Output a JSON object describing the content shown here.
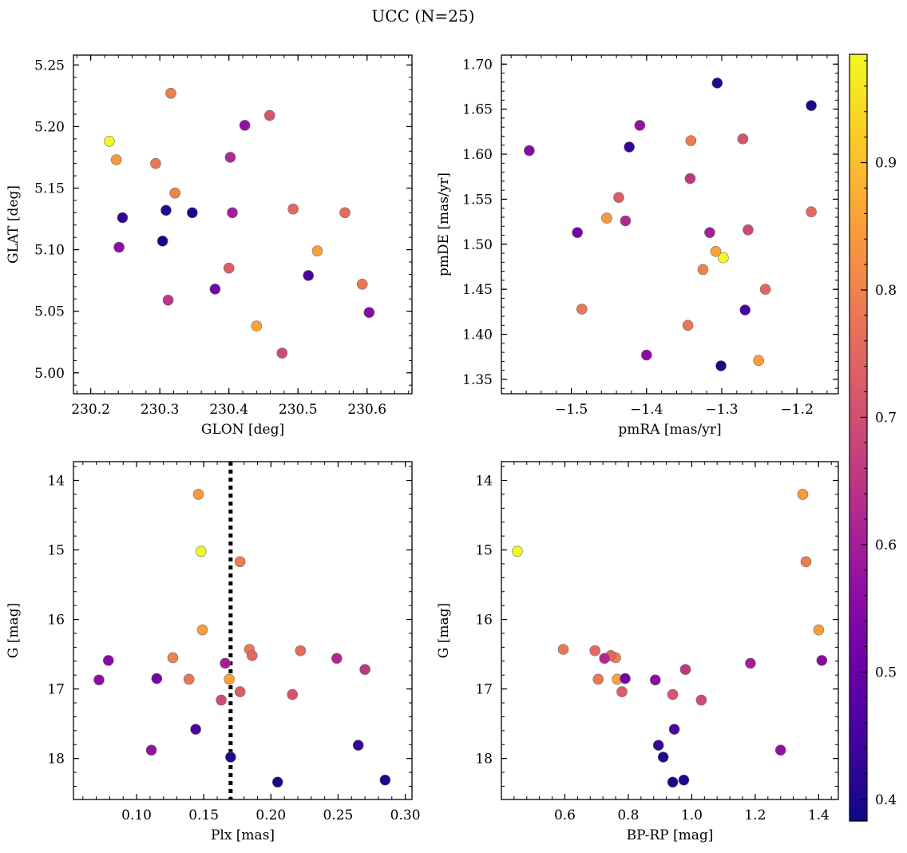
{
  "suptitle": "UCC (N=25)",
  "colormap": "plasma",
  "colorbar": {
    "min": 0.383,
    "max": 0.985,
    "ticks": [
      0.4,
      0.5,
      0.6,
      0.7,
      0.8,
      0.9
    ],
    "tick_labels": [
      "0.4",
      "0.5",
      "0.6",
      "0.7",
      "0.8",
      "0.9"
    ]
  },
  "stars": [
    {
      "glon": 230.227,
      "glat": 5.188,
      "pmra": -1.298,
      "pmde": 1.485,
      "plx": 0.148,
      "g": 15.02,
      "bprp": 0.45,
      "prob": 0.985
    },
    {
      "glon": 230.237,
      "glat": 5.173,
      "pmra": -1.453,
      "pmde": 1.529,
      "plx": 0.146,
      "g": 14.2,
      "bprp": 1.35,
      "prob": 0.84
    },
    {
      "glon": 230.528,
      "glat": 5.099,
      "pmra": -1.251,
      "pmde": 1.371,
      "plx": 0.149,
      "g": 16.15,
      "bprp": 1.4,
      "prob": 0.85
    },
    {
      "glon": 230.44,
      "glat": 5.038,
      "pmra": -1.308,
      "pmde": 1.492,
      "plx": 0.169,
      "g": 16.86,
      "bprp": 0.765,
      "prob": 0.86
    },
    {
      "glon": 230.322,
      "glat": 5.146,
      "pmra": -1.325,
      "pmde": 1.472,
      "plx": 0.127,
      "g": 16.55,
      "bprp": 0.76,
      "prob": 0.8
    },
    {
      "glon": 230.316,
      "glat": 5.227,
      "pmra": -1.341,
      "pmde": 1.615,
      "plx": 0.177,
      "g": 15.17,
      "bprp": 1.36,
      "prob": 0.79
    },
    {
      "glon": 230.294,
      "glat": 5.17,
      "pmra": -1.345,
      "pmde": 1.41,
      "plx": 0.184,
      "g": 16.43,
      "bprp": 0.595,
      "prob": 0.78
    },
    {
      "glon": 230.593,
      "glat": 5.072,
      "pmra": -1.486,
      "pmde": 1.428,
      "plx": 0.139,
      "g": 16.86,
      "bprp": 0.705,
      "prob": 0.78
    },
    {
      "glon": 230.568,
      "glat": 5.13,
      "pmra": -1.181,
      "pmde": 1.536,
      "plx": 0.222,
      "g": 16.45,
      "bprp": 0.695,
      "prob": 0.76
    },
    {
      "glon": 230.493,
      "glat": 5.133,
      "pmra": -1.242,
      "pmde": 1.45,
      "plx": 0.186,
      "g": 16.52,
      "bprp": 0.745,
      "prob": 0.75
    },
    {
      "glon": 230.4,
      "glat": 5.085,
      "pmra": -1.437,
      "pmde": 1.552,
      "plx": 0.177,
      "g": 17.04,
      "bprp": 0.78,
      "prob": 0.73
    },
    {
      "glon": 230.459,
      "glat": 5.209,
      "pmra": -1.272,
      "pmde": 1.617,
      "plx": 0.216,
      "g": 17.08,
      "bprp": 0.94,
      "prob": 0.71
    },
    {
      "glon": 230.477,
      "glat": 5.016,
      "pmra": -1.265,
      "pmde": 1.516,
      "plx": 0.163,
      "g": 17.16,
      "bprp": 1.03,
      "prob": 0.69
    },
    {
      "glon": 230.312,
      "glat": 5.059,
      "pmra": -1.342,
      "pmde": 1.573,
      "plx": 0.27,
      "g": 16.72,
      "bprp": 0.98,
      "prob": 0.65
    },
    {
      "glon": 230.402,
      "glat": 5.175,
      "pmra": -1.428,
      "pmde": 1.526,
      "plx": 0.249,
      "g": 16.56,
      "bprp": 0.725,
      "prob": 0.62
    },
    {
      "glon": 230.405,
      "glat": 5.13,
      "pmra": -1.316,
      "pmde": 1.513,
      "plx": 0.166,
      "g": 16.63,
      "bprp": 1.185,
      "prob": 0.6
    },
    {
      "glon": 230.423,
      "glat": 5.201,
      "pmra": -1.409,
      "pmde": 1.632,
      "plx": 0.111,
      "g": 17.88,
      "bprp": 1.28,
      "prob": 0.57
    },
    {
      "glon": 230.241,
      "glat": 5.102,
      "pmra": -1.4,
      "pmde": 1.377,
      "plx": 0.072,
      "g": 16.87,
      "bprp": 0.885,
      "prob": 0.56
    },
    {
      "glon": 230.603,
      "glat": 5.049,
      "pmra": -1.556,
      "pmde": 1.604,
      "plx": 0.079,
      "g": 16.59,
      "bprp": 1.41,
      "prob": 0.55
    },
    {
      "glon": 230.38,
      "glat": 5.068,
      "pmra": -1.492,
      "pmde": 1.513,
      "plx": 0.115,
      "g": 16.85,
      "bprp": 0.79,
      "prob": 0.52
    },
    {
      "glon": 230.515,
      "glat": 5.079,
      "pmra": -1.269,
      "pmde": 1.427,
      "plx": 0.144,
      "g": 17.58,
      "bprp": 0.945,
      "prob": 0.46
    },
    {
      "glon": 230.246,
      "glat": 5.126,
      "pmra": -1.423,
      "pmde": 1.608,
      "plx": 0.265,
      "g": 17.81,
      "bprp": 0.895,
      "prob": 0.43
    },
    {
      "glon": 230.309,
      "glat": 5.132,
      "pmra": -1.306,
      "pmde": 1.679,
      "plx": 0.17,
      "g": 17.98,
      "bprp": 0.91,
      "prob": 0.41
    },
    {
      "glon": 230.347,
      "glat": 5.13,
      "pmra": -1.181,
      "pmde": 1.654,
      "plx": 0.285,
      "g": 18.31,
      "bprp": 0.975,
      "prob": 0.4
    },
    {
      "glon": 230.304,
      "glat": 5.107,
      "pmra": -1.301,
      "pmde": 1.365,
      "plx": 0.205,
      "g": 18.34,
      "bprp": 0.94,
      "prob": 0.39
    }
  ],
  "chart_data": [
    {
      "type": "scatter",
      "panel": "glon-glat",
      "xlabel": "GLON [deg]",
      "ylabel": "GLAT [deg]",
      "x_field": "glon",
      "y_field": "glat",
      "xlim": [
        230.175,
        230.665
      ],
      "ylim": [
        4.983,
        5.258
      ],
      "xticks": [
        230.2,
        230.3,
        230.4,
        230.5,
        230.6
      ],
      "xtick_labels": [
        "230.2",
        "230.3",
        "230.4",
        "230.5",
        "230.6"
      ],
      "yticks": [
        5.0,
        5.05,
        5.1,
        5.15,
        5.2,
        5.25
      ],
      "ytick_labels": [
        "5.00",
        "5.05",
        "5.10",
        "5.15",
        "5.20",
        "5.25"
      ],
      "y_inverted": false,
      "color_field": "prob"
    },
    {
      "type": "scatter",
      "panel": "pmra-pmde",
      "xlabel": "pmRA [mas/yr]",
      "ylabel": "pmDE [mas/yr]",
      "x_field": "pmra",
      "y_field": "pmde",
      "xlim": [
        -1.593,
        -1.145
      ],
      "ylim": [
        1.334,
        1.71
      ],
      "xticks": [
        -1.5,
        -1.4,
        -1.3,
        -1.2
      ],
      "xtick_labels": [
        "−1.5",
        "−1.4",
        "−1.3",
        "−1.2"
      ],
      "yticks": [
        1.35,
        1.4,
        1.45,
        1.5,
        1.55,
        1.6,
        1.65,
        1.7
      ],
      "ytick_labels": [
        "1.35",
        "1.40",
        "1.45",
        "1.50",
        "1.55",
        "1.60",
        "1.65",
        "1.70"
      ],
      "y_inverted": false,
      "color_field": "prob"
    },
    {
      "type": "scatter",
      "panel": "plx-g",
      "xlabel": "Plx [mas]",
      "ylabel": "G [mag]",
      "x_field": "plx",
      "y_field": "g",
      "xlim": [
        0.053,
        0.305
      ],
      "ylim": [
        13.73,
        18.59
      ],
      "xticks": [
        0.1,
        0.15,
        0.2,
        0.25,
        0.3
      ],
      "xtick_labels": [
        "0.10",
        "0.15",
        "0.20",
        "0.25",
        "0.30"
      ],
      "yticks": [
        14,
        15,
        16,
        17,
        18
      ],
      "ytick_labels": [
        "14",
        "15",
        "16",
        "17",
        "18"
      ],
      "y_inverted": true,
      "vline": 0.17,
      "color_field": "prob"
    },
    {
      "type": "scatter",
      "panel": "bprp-g",
      "xlabel": "BP-RP [mag]",
      "ylabel": "G [mag]",
      "x_field": "bprp",
      "y_field": "g",
      "xlim": [
        0.4,
        1.462
      ],
      "ylim": [
        13.73,
        18.59
      ],
      "xticks": [
        0.6,
        0.8,
        1.0,
        1.2,
        1.4
      ],
      "xtick_labels": [
        "0.6",
        "0.8",
        "1.0",
        "1.2",
        "1.4"
      ],
      "yticks": [
        14,
        15,
        16,
        17,
        18
      ],
      "ytick_labels": [
        "14",
        "15",
        "16",
        "17",
        "18"
      ],
      "y_inverted": true,
      "color_field": "prob"
    }
  ]
}
